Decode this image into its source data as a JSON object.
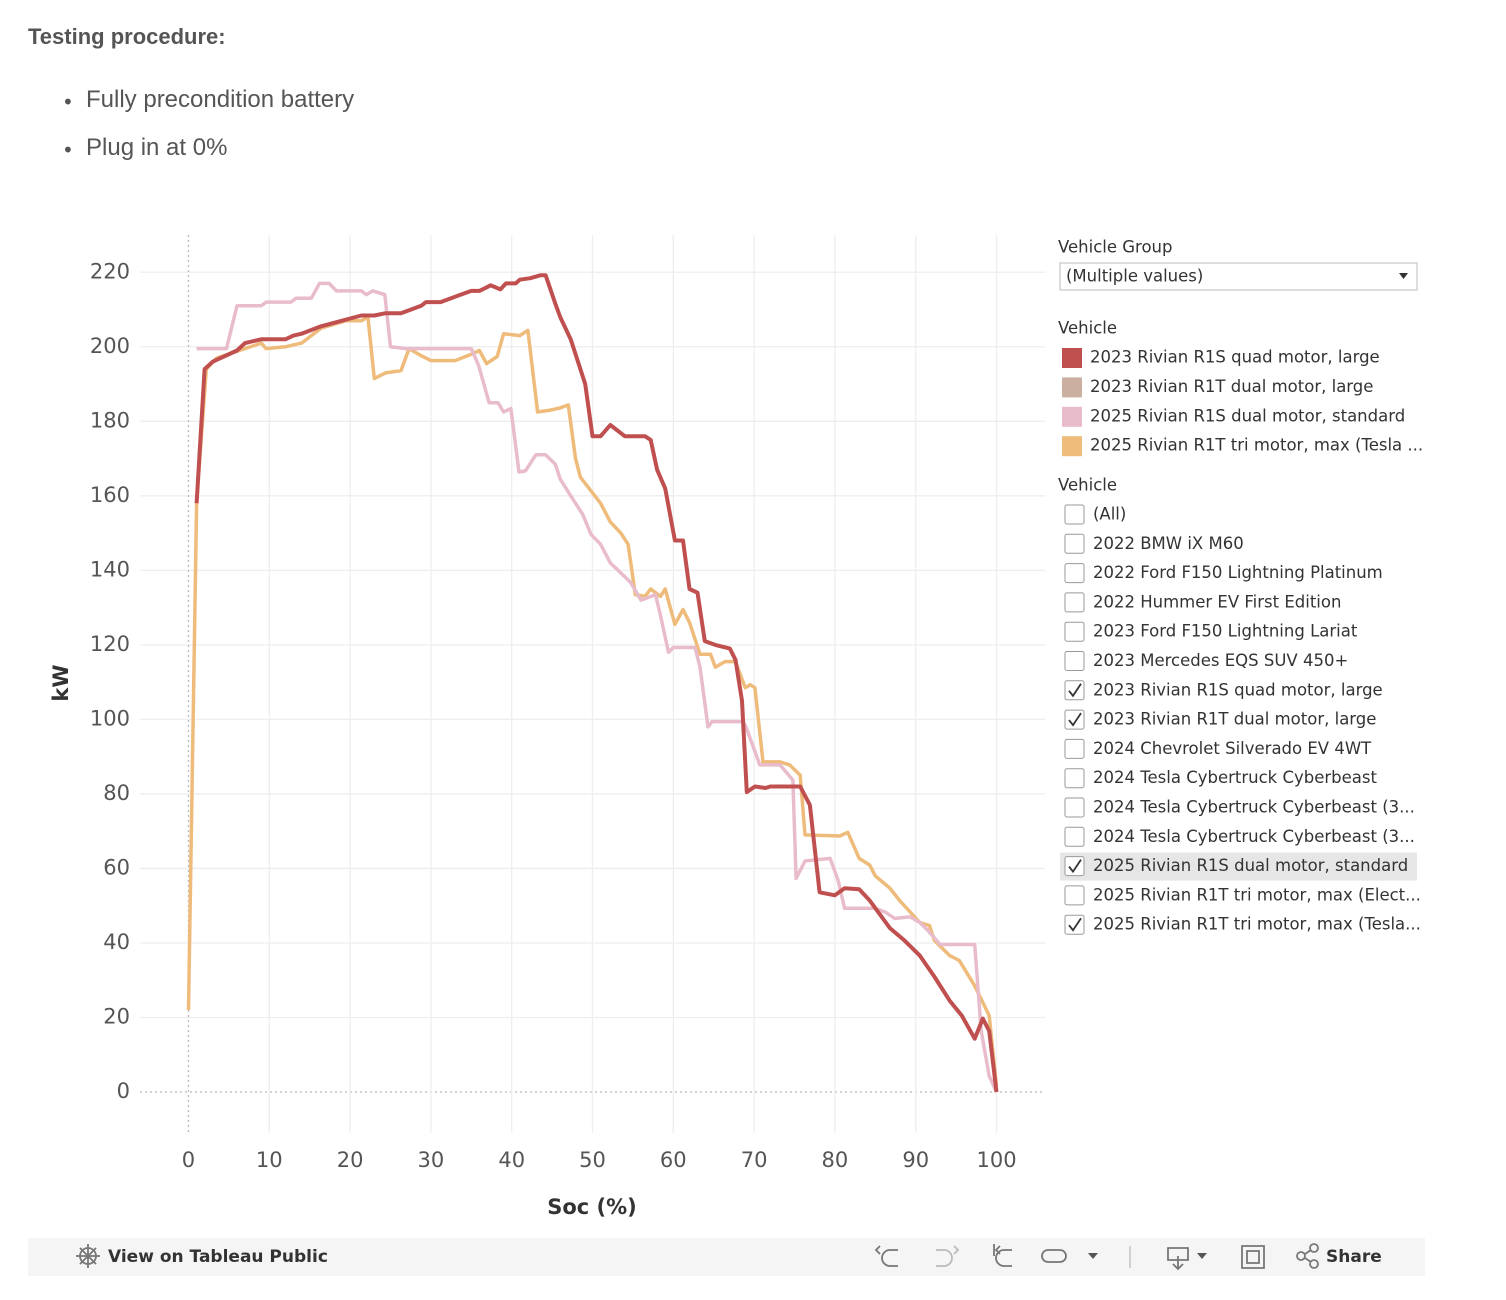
{
  "header": {
    "title": "Testing procedure:",
    "bullets": [
      "Fully precondition battery",
      "Plug in at 0%"
    ]
  },
  "chart_data": {
    "type": "line",
    "x_label": "Soc (%)",
    "y_label": "kW",
    "xlim": [
      -6,
      106
    ],
    "xticks": [
      0,
      10,
      20,
      30,
      40,
      50,
      60,
      70,
      80,
      90,
      100
    ],
    "ylim": [
      -11,
      230
    ],
    "yticks": [
      0,
      20,
      40,
      60,
      80,
      100,
      120,
      140,
      160,
      180,
      200,
      220
    ],
    "grid": true,
    "legend_title": "Vehicle",
    "series": [
      {
        "name": "2023 Rivian R1S quad motor, large",
        "color": "#c0504f",
        "x": [
          1,
          2,
          3,
          6,
          7,
          9,
          12,
          13,
          14,
          16.4,
          19,
          20,
          21.4,
          23,
          24.4,
          26.3,
          28.8,
          29.4,
          31.2,
          33.7,
          35,
          36,
          37.4,
          38.6,
          39.3,
          40.5,
          41,
          42.3,
          43.6,
          44.2,
          45.4,
          46,
          47.3,
          49.1,
          50,
          51,
          52.2,
          54,
          56.5,
          57.2,
          58,
          59,
          60.2,
          61.2,
          62,
          63,
          63.9,
          65.2,
          67,
          67.7,
          68.5,
          69.1,
          70.1,
          71.4,
          72,
          75.7,
          76.9,
          78.1,
          80,
          81.2,
          83,
          84.3,
          86.8,
          88.6,
          90.5,
          92.3,
          94.2,
          95.7,
          97.3,
          98.3,
          99.1,
          100
        ],
        "values": [
          158,
          194,
          196,
          199,
          201,
          202,
          202,
          203,
          203.5,
          205.5,
          207,
          207.6,
          208.4,
          208.4,
          209,
          209,
          211,
          212,
          212,
          214,
          215,
          215,
          216.5,
          215.4,
          217,
          217,
          218,
          218.4,
          219.2,
          219.2,
          211.6,
          208,
          202,
          190,
          176,
          176,
          179,
          176,
          176,
          175,
          167,
          162,
          148,
          148,
          135,
          134,
          121,
          120,
          119,
          116,
          105,
          80.5,
          82,
          81.6,
          82,
          82,
          77,
          53.6,
          52.8,
          54.7,
          54.4,
          51.4,
          44,
          40.7,
          36.6,
          31,
          24.5,
          20.5,
          14.3,
          19.7,
          16.4,
          0
        ]
      },
      {
        "name": "2023 Rivian R1T dual motor, large",
        "color": "#cbafa1",
        "x": [],
        "values": []
      },
      {
        "name": "2025 Rivian R1S dual motor, standard",
        "color": "#e9bccb",
        "x": [
          1,
          4.7,
          6,
          9,
          9.6,
          12.7,
          13.3,
          15.2,
          16.2,
          17.4,
          18.3,
          21.4,
          22,
          22.8,
          24.3,
          25,
          26.9,
          35,
          35.9,
          37.2,
          38.3,
          39,
          39.9,
          40.9,
          41.7,
          43,
          44.2,
          45.4,
          46,
          47.3,
          48.8,
          49.8,
          51,
          52.2,
          54.7,
          56,
          57.8,
          58.4,
          59.4,
          60,
          62.7,
          63.3,
          64.3,
          64.8,
          68.5,
          68.9,
          70.7,
          73.2,
          74.8,
          75.2,
          76.3,
          79.4,
          80.4,
          81.2,
          85,
          86.3,
          87.4,
          89.3,
          90.5,
          91.5,
          93,
          97.3,
          98.1,
          99.1,
          100
        ],
        "values": [
          199.5,
          199.5,
          211,
          211,
          212,
          212,
          213,
          213,
          217,
          217,
          215,
          215,
          214,
          215,
          214,
          200,
          199.5,
          199.5,
          195,
          185,
          185,
          182.5,
          183.4,
          166.4,
          166.7,
          171,
          171,
          168.5,
          164.5,
          160,
          155,
          149.7,
          147,
          142,
          136.8,
          132,
          133.5,
          128,
          118,
          119.3,
          119.3,
          114,
          98,
          99.4,
          99.4,
          98.5,
          87.8,
          87.8,
          83.7,
          57.3,
          62,
          62.7,
          56.8,
          49.3,
          49.3,
          48.2,
          46.6,
          47,
          45.5,
          43.4,
          39.6,
          39.6,
          16.4,
          4.3,
          0
        ]
      },
      {
        "name": "2025 Rivian R1T tri motor, max (Tesla ...",
        "color": "#efbb7b",
        "x": [
          0,
          1,
          2.2,
          3.5,
          7,
          9,
          9.6,
          12,
          14,
          16.4,
          19.5,
          21.4,
          22.2,
          23,
          24.4,
          26.3,
          27.3,
          28.8,
          30,
          33,
          35,
          36,
          36.9,
          38.2,
          39,
          41,
          42,
          43.2,
          44.8,
          46,
          47,
          47.9,
          48.5,
          51,
          52.2,
          53.5,
          54.4,
          55.3,
          56.5,
          57.2,
          58.4,
          59,
          60.2,
          61.2,
          62,
          63.3,
          64.6,
          65.2,
          66.4,
          67.7,
          68.9,
          69.5,
          70.1,
          71.1,
          73.2,
          74.4,
          75.7,
          76.3,
          80.6,
          81.6,
          83,
          84.3,
          85,
          86.8,
          88,
          90.5,
          91.7,
          92.3,
          94.2,
          95.4,
          97.3,
          99.1,
          100
        ],
        "values": [
          22,
          158,
          194,
          197,
          199.5,
          201,
          199.5,
          200,
          201,
          205,
          207,
          207,
          208,
          191.5,
          193,
          193.6,
          199.5,
          197.6,
          196.3,
          196.3,
          198,
          199,
          195.5,
          197.4,
          203.5,
          203,
          204.4,
          182.5,
          183,
          183.6,
          184.4,
          170,
          165,
          158,
          153,
          150,
          147,
          133.5,
          133,
          135,
          133,
          135,
          125.5,
          129.5,
          126,
          117.5,
          117.5,
          114,
          115.5,
          115.5,
          108.5,
          109.3,
          108.5,
          88.6,
          88.6,
          87.8,
          85,
          69,
          68.7,
          69.7,
          62.7,
          60.9,
          58,
          54.7,
          51.4,
          45.5,
          44.7,
          40.7,
          36.6,
          35.3,
          28.5,
          20.5,
          1.6
        ]
      }
    ]
  },
  "filters": {
    "group": {
      "title": "Vehicle Group",
      "value": "(Multiple values)"
    },
    "vehicle": {
      "title": "Vehicle",
      "items": [
        {
          "label": "(All)",
          "checked": false
        },
        {
          "label": "2022 BMW iX M60",
          "checked": false
        },
        {
          "label": "2022 Ford F150 Lightning Platinum",
          "checked": false
        },
        {
          "label": "2022 Hummer EV First Edition",
          "checked": false
        },
        {
          "label": "2023 Ford F150 Lightning Lariat",
          "checked": false
        },
        {
          "label": "2023 Mercedes EQS SUV 450+",
          "checked": false
        },
        {
          "label": "2023 Rivian R1S quad motor, large",
          "checked": true
        },
        {
          "label": "2023 Rivian R1T dual motor, large",
          "checked": true
        },
        {
          "label": "2024 Chevrolet Silverado EV 4WT",
          "checked": false
        },
        {
          "label": "2024 Tesla Cybertruck Cyberbeast",
          "checked": false
        },
        {
          "label": "2024 Tesla Cybertruck Cyberbeast (3...",
          "checked": false
        },
        {
          "label": "2024 Tesla Cybertruck Cyberbeast (3...",
          "checked": false
        },
        {
          "label": "2025 Rivian R1S dual motor, standard",
          "checked": true,
          "highlighted": true
        },
        {
          "label": "2025 Rivian R1T tri motor, max (Elect...",
          "checked": false
        },
        {
          "label": "2025 Rivian R1T tri motor, max (Tesla...",
          "checked": true
        }
      ]
    }
  },
  "toolbar": {
    "view": "View on Tableau Public",
    "share": "Share"
  }
}
